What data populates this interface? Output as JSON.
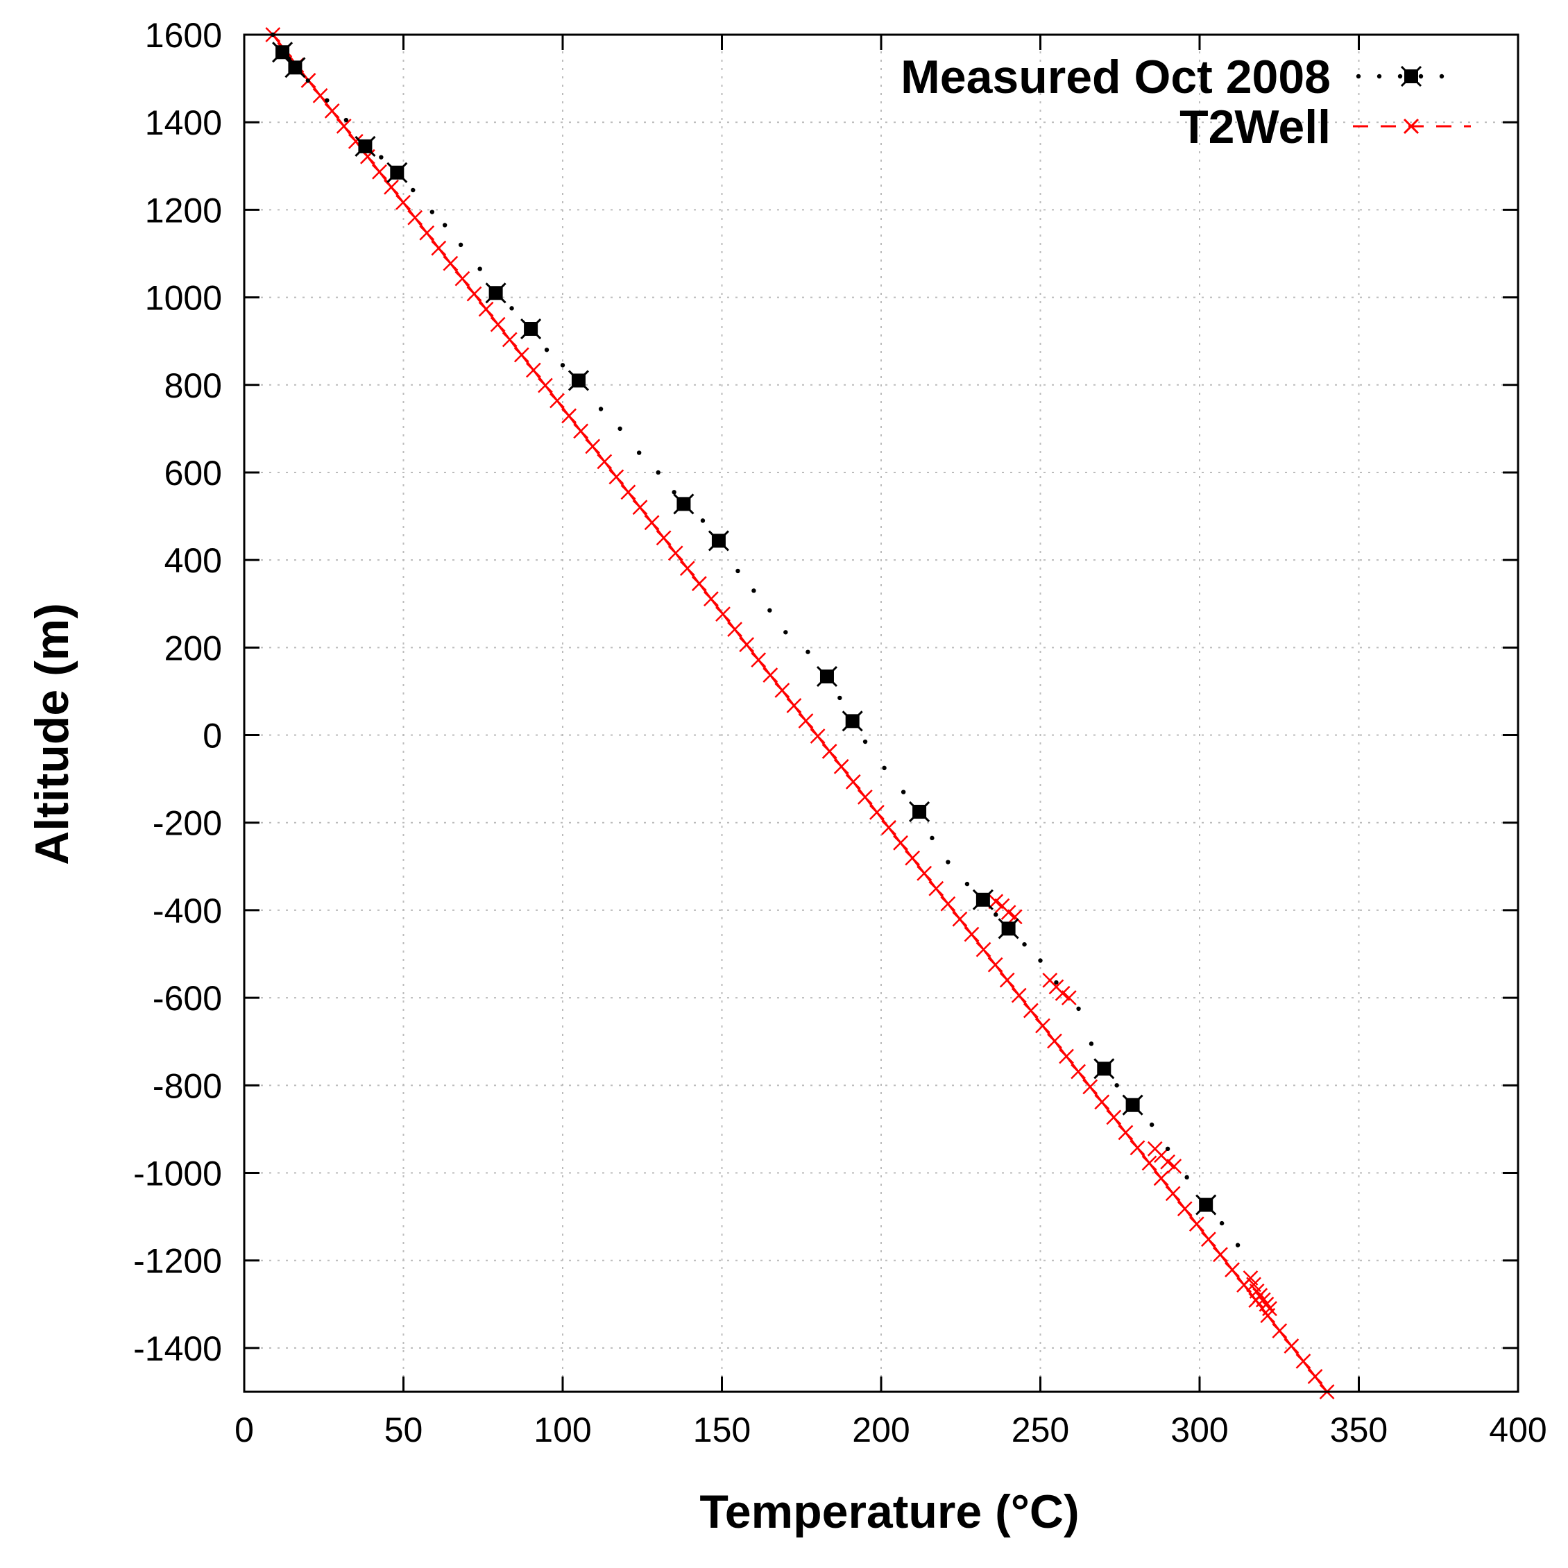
{
  "chart_data": {
    "type": "scatter",
    "title": "",
    "xlabel": "Temperature (°C)",
    "ylabel": "Altitude (m)",
    "xlim": [
      0,
      400
    ],
    "ylim": [
      -1500,
      1600
    ],
    "xticks": [
      0,
      50,
      100,
      150,
      200,
      250,
      300,
      350,
      400
    ],
    "yticks": [
      1600,
      1400,
      1200,
      1000,
      800,
      600,
      400,
      200,
      0,
      -200,
      -400,
      -600,
      -800,
      -1000,
      -1200,
      -1400
    ],
    "grid": true,
    "legend_position": "top-right",
    "series": [
      {
        "name": "Measured Oct 2008",
        "color": "#000000",
        "marker": "filled-square",
        "line": "dotted",
        "points": [
          [
            12,
            1560
          ],
          [
            16,
            1525
          ],
          [
            38,
            1345
          ],
          [
            48,
            1285
          ],
          [
            79,
            1010
          ],
          [
            90,
            928
          ],
          [
            105,
            810
          ],
          [
            138,
            528
          ],
          [
            149,
            444
          ],
          [
            183,
            134
          ],
          [
            191,
            32
          ],
          [
            212,
            -175
          ],
          [
            232,
            -376
          ],
          [
            240,
            -442
          ],
          [
            270,
            -762
          ],
          [
            279,
            -845
          ],
          [
            302,
            -1073
          ]
        ],
        "dots": [
          [
            9,
            1600
          ],
          [
            14,
            1545
          ],
          [
            20,
            1495
          ],
          [
            26,
            1450
          ],
          [
            32,
            1405
          ],
          [
            43,
            1320
          ],
          [
            53,
            1245
          ],
          [
            59,
            1195
          ],
          [
            63,
            1165
          ],
          [
            68,
            1120
          ],
          [
            74,
            1065
          ],
          [
            84,
            975
          ],
          [
            95,
            880
          ],
          [
            100,
            845
          ],
          [
            112,
            745
          ],
          [
            118,
            700
          ],
          [
            124,
            645
          ],
          [
            130,
            600
          ],
          [
            135,
            555
          ],
          [
            144,
            490
          ],
          [
            155,
            375
          ],
          [
            160,
            330
          ],
          [
            165,
            285
          ],
          [
            170,
            235
          ],
          [
            177,
            190
          ],
          [
            187,
            85
          ],
          [
            195,
            -15
          ],
          [
            201,
            -75
          ],
          [
            207,
            -130
          ],
          [
            216,
            -235
          ],
          [
            221,
            -290
          ],
          [
            227,
            -340
          ],
          [
            236,
            -410
          ],
          [
            245,
            -478
          ],
          [
            250,
            -515
          ],
          [
            255,
            -565
          ],
          [
            262,
            -625
          ],
          [
            266,
            -705
          ],
          [
            274,
            -800
          ],
          [
            285,
            -890
          ],
          [
            290,
            -945
          ],
          [
            296,
            -1010
          ],
          [
            307,
            -1115
          ],
          [
            312,
            -1165
          ]
        ]
      },
      {
        "name": "T2Well",
        "color": "#ff0000",
        "marker": "x-cross",
        "line": "dashed",
        "start": [
          9,
          1600
        ],
        "end": [
          340,
          -1500
        ],
        "num_points": 90,
        "extra_points": [
          [
            236,
            -380
          ],
          [
            238,
            -390
          ],
          [
            240,
            -405
          ],
          [
            242,
            -415
          ],
          [
            253,
            -560
          ],
          [
            255,
            -575
          ],
          [
            257,
            -590
          ],
          [
            259,
            -600
          ],
          [
            286,
            -945
          ],
          [
            288,
            -960
          ],
          [
            290,
            -975
          ],
          [
            292,
            -985
          ],
          [
            316,
            -1240
          ],
          [
            317,
            -1255
          ],
          [
            318,
            -1270
          ],
          [
            319,
            -1280
          ],
          [
            320,
            -1290
          ],
          [
            321,
            -1300
          ],
          [
            322,
            -1310
          ]
        ]
      }
    ]
  }
}
